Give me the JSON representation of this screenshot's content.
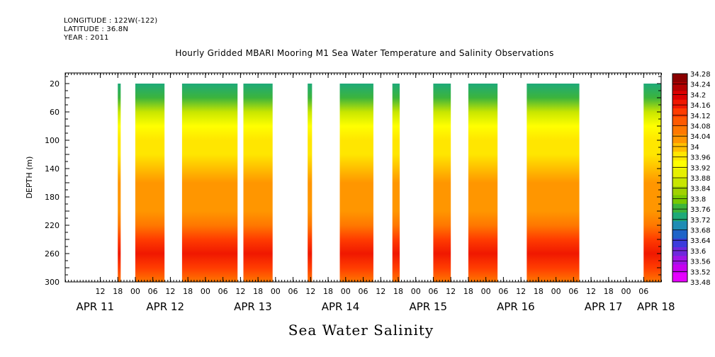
{
  "header": {
    "longitude": "LONGITUDE : 122W(-122)",
    "latitude": "LATITUDE : 36.8N",
    "year": "YEAR : 2011"
  },
  "chart_data": {
    "type": "heatmap",
    "title": "Hourly Gridded MBARI Mooring M1 Sea Water Temperature and Salinity Observations",
    "footer": "Sea Water Salinity",
    "ylabel": "DEPTH (m)",
    "ylim": [
      300,
      0
    ],
    "yticks": [
      20,
      60,
      100,
      140,
      180,
      220,
      260,
      300
    ],
    "x_hour_range": [
      0,
      204
    ],
    "x_hour_origin": "APR 11 00",
    "x_hour_ticks": [
      {
        "hour": 12,
        "label": "12"
      },
      {
        "hour": 18,
        "label": "18"
      },
      {
        "hour": 24,
        "label": "00"
      },
      {
        "hour": 30,
        "label": "06"
      },
      {
        "hour": 36,
        "label": "12"
      },
      {
        "hour": 42,
        "label": "18"
      },
      {
        "hour": 48,
        "label": "00"
      },
      {
        "hour": 54,
        "label": "06"
      },
      {
        "hour": 60,
        "label": "12"
      },
      {
        "hour": 66,
        "label": "18"
      },
      {
        "hour": 72,
        "label": "00"
      },
      {
        "hour": 78,
        "label": "06"
      },
      {
        "hour": 84,
        "label": "12"
      },
      {
        "hour": 90,
        "label": "18"
      },
      {
        "hour": 96,
        "label": "00"
      },
      {
        "hour": 102,
        "label": "06"
      },
      {
        "hour": 108,
        "label": "12"
      },
      {
        "hour": 114,
        "label": "18"
      },
      {
        "hour": 120,
        "label": "00"
      },
      {
        "hour": 126,
        "label": "06"
      },
      {
        "hour": 132,
        "label": "12"
      },
      {
        "hour": 138,
        "label": "18"
      },
      {
        "hour": 144,
        "label": "00"
      },
      {
        "hour": 150,
        "label": "06"
      },
      {
        "hour": 156,
        "label": "12"
      },
      {
        "hour": 162,
        "label": "18"
      },
      {
        "hour": 168,
        "label": "00"
      },
      {
        "hour": 174,
        "label": "06"
      },
      {
        "hour": 180,
        "label": "12"
      },
      {
        "hour": 186,
        "label": "18"
      },
      {
        "hour": 192,
        "label": "00"
      },
      {
        "hour": 198,
        "label": "06"
      }
    ],
    "date_labels": [
      {
        "hour": 12,
        "label": "APR 11"
      },
      {
        "hour": 36,
        "label": "APR 12"
      },
      {
        "hour": 66,
        "label": "APR 13"
      },
      {
        "hour": 96,
        "label": "APR 14"
      },
      {
        "hour": 126,
        "label": "APR 15"
      },
      {
        "hour": 156,
        "label": "APR 16"
      },
      {
        "hour": 186,
        "label": "APR 17"
      },
      {
        "hour": 204,
        "label": "APR 18"
      }
    ],
    "observation_segments": [
      {
        "start_hour": 18.0,
        "end_hour": 19.0
      },
      {
        "start_hour": 24.0,
        "end_hour": 34.0
      },
      {
        "start_hour": 40.0,
        "end_hour": 59.0
      },
      {
        "start_hour": 61.0,
        "end_hour": 71.0
      },
      {
        "start_hour": 83.0,
        "end_hour": 84.5
      },
      {
        "start_hour": 94.0,
        "end_hour": 105.5
      },
      {
        "start_hour": 112.0,
        "end_hour": 114.5
      },
      {
        "start_hour": 126.0,
        "end_hour": 132.0
      },
      {
        "start_hour": 138.0,
        "end_hour": 148.0
      },
      {
        "start_hour": 158.0,
        "end_hour": 176.0
      },
      {
        "start_hour": 198.0,
        "end_hour": 210.0
      }
    ],
    "depth_profile": [
      {
        "depth": 20,
        "salinity": 33.76
      },
      {
        "depth": 40,
        "salinity": 33.8
      },
      {
        "depth": 60,
        "salinity": 33.88
      },
      {
        "depth": 80,
        "salinity": 33.96
      },
      {
        "depth": 100,
        "salinity": 34.0
      },
      {
        "depth": 120,
        "salinity": 34.04
      },
      {
        "depth": 140,
        "salinity": 34.08
      },
      {
        "depth": 160,
        "salinity": 34.1
      },
      {
        "depth": 180,
        "salinity": 34.1
      },
      {
        "depth": 200,
        "salinity": 34.12
      },
      {
        "depth": 220,
        "salinity": 34.16
      },
      {
        "depth": 240,
        "salinity": 34.2
      },
      {
        "depth": 260,
        "salinity": 34.24
      },
      {
        "depth": 280,
        "salinity": 34.2
      },
      {
        "depth": 300,
        "salinity": 34.16
      }
    ],
    "colorbar": {
      "levels": [
        "34.28",
        "34.24",
        "34.2",
        "34.16",
        "34.12",
        "34.08",
        "34.04",
        "34",
        "33.96",
        "33.92",
        "33.88",
        "33.84",
        "33.8",
        "33.76",
        "33.72",
        "33.68",
        "33.64",
        "33.6",
        "33.56",
        "33.52",
        "33.48"
      ],
      "colors": [
        "#8b0000",
        "#b40000",
        "#dc0000",
        "#f01800",
        "#ff3c00",
        "#ff5a00",
        "#ff7800",
        "#ff9600",
        "#ffbe00",
        "#ffe600",
        "#ffff00",
        "#e6f000",
        "#c8e600",
        "#a0d200",
        "#78c800",
        "#3cb43c",
        "#1eaa78",
        "#1e8cb4",
        "#1e64c8",
        "#3c3cdc",
        "#6e28dc",
        "#a014e6",
        "#c800f0",
        "#e600ff"
      ]
    },
    "grid": false
  }
}
